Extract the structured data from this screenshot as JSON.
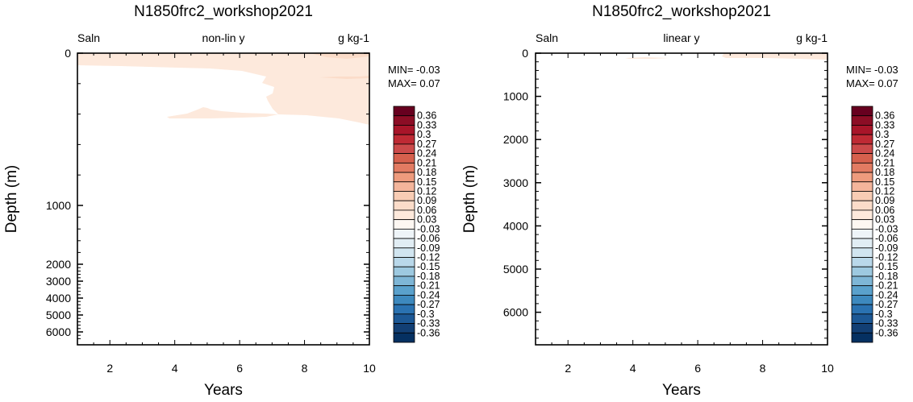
{
  "chart_data": [
    {
      "type": "contour",
      "title": "N1850frc2_workshop2021",
      "left_label": "Saln",
      "center_label": "non-lin y",
      "right_label": "g kg-1",
      "xlabel": "Years",
      "ylabel": "Depth (m)",
      "xlim": [
        1,
        10
      ],
      "ylim": [
        6500,
        0
      ],
      "x_ticks": [
        "2",
        "4",
        "6",
        "8",
        "10"
      ],
      "y_ticks": [
        "0",
        "1000",
        "2000",
        "3000",
        "4000",
        "5000",
        "6000"
      ],
      "y_scale": "non-linear",
      "min_text": "MIN= -0.03",
      "max_text": "MAX=  0.07",
      "shaded_regions": [
        {
          "level": "0.03 to 0.06",
          "color": "#fde9dc",
          "years": [
            1,
            10
          ],
          "depth_m": [
            0,
            25
          ]
        },
        {
          "level": "0.03 to 0.06",
          "color": "#fde9dc",
          "years": [
            1.3,
            10
          ],
          "depth_m": [
            50,
            460
          ]
        },
        {
          "level": "0.06 to 0.09",
          "color": "#fbdcc9",
          "years": [
            8,
            10
          ],
          "depth_m": [
            0,
            10
          ]
        },
        {
          "level": "0.06 to 0.09",
          "color": "#fbdcc9",
          "years": [
            8.5,
            9.5
          ],
          "depth_m": [
            140,
            160
          ]
        }
      ]
    },
    {
      "type": "contour",
      "title": "N1850frc2_workshop2021",
      "left_label": "Saln",
      "center_label": "linear y",
      "right_label": "g kg-1",
      "xlabel": "Years",
      "ylabel": "Depth (m)",
      "xlim": [
        1,
        10
      ],
      "ylim": [
        6750,
        0
      ],
      "x_ticks": [
        "2",
        "4",
        "6",
        "8",
        "10"
      ],
      "y_ticks": [
        "0",
        "1000",
        "2000",
        "3000",
        "4000",
        "5000",
        "6000"
      ],
      "y_scale": "linear",
      "min_text": "MIN= -0.03",
      "max_text": "MAX=  0.07",
      "shaded_regions": [
        {
          "level": "0.03 to 0.06",
          "color": "#fde9dc",
          "years": [
            4,
            10
          ],
          "depth_m": [
            0,
            150
          ]
        }
      ]
    }
  ],
  "colorbar": {
    "labels": [
      "0.36",
      "0.33",
      "0.3",
      "0.27",
      "0.24",
      "0.21",
      "0.18",
      "0.15",
      "0.12",
      "0.09",
      "0.06",
      "0.03",
      "-0.03",
      "-0.06",
      "-0.09",
      "-0.12",
      "-0.15",
      "-0.18",
      "-0.21",
      "-0.24",
      "-0.27",
      "-0.3",
      "-0.33",
      "-0.36"
    ],
    "colors": [
      "#67001f",
      "#8c0d25",
      "#a81529",
      "#bf2a34",
      "#cc4a4a",
      "#d6604d",
      "#e27b62",
      "#ee9b7d",
      "#f4b59b",
      "#f8ccb4",
      "#fbdcc9",
      "#fde9dc",
      "#fdf7f2",
      "#eef4f8",
      "#e1edf4",
      "#d1e5f0",
      "#b9d8ea",
      "#9dc9e0",
      "#7eb6d6",
      "#5aa1cc",
      "#3d89be",
      "#2a72b1",
      "#1c5895",
      "#123f74",
      "#053061"
    ]
  }
}
